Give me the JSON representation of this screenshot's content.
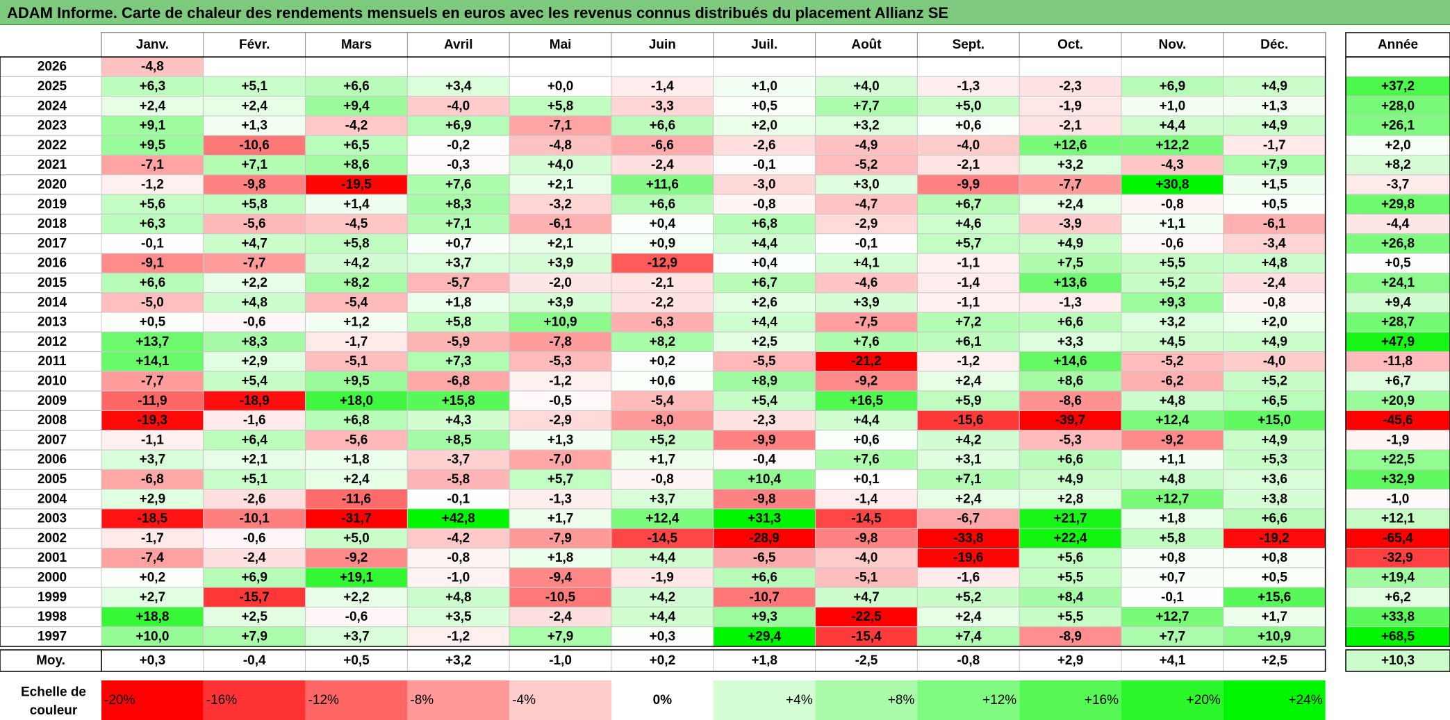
{
  "title": "ADAM Informe. Carte de chaleur des rendements mensuels en euros avec les revenus connus distribués du placement Allianz SE",
  "chart_data": {
    "type": "heatmap",
    "months": [
      "Janv.",
      "Févr.",
      "Mars",
      "Avril",
      "Mai",
      "Juin",
      "Juil.",
      "Août",
      "Sept.",
      "Oct.",
      "Nov.",
      "Déc."
    ],
    "year_header": "Année",
    "rows": [
      {
        "year": "2026",
        "values": [
          "-4,8",
          "",
          "",
          "",
          "",
          "",
          "",
          "",
          "",
          "",
          "",
          ""
        ],
        "annual": ""
      },
      {
        "year": "2025",
        "values": [
          "+6,3",
          "+5,1",
          "+6,6",
          "+3,4",
          "+0,0",
          "-1,4",
          "+1,0",
          "+4,0",
          "-1,3",
          "-2,3",
          "+6,9",
          "+4,9"
        ],
        "annual": "+37,2"
      },
      {
        "year": "2024",
        "values": [
          "+2,4",
          "+2,4",
          "+9,4",
          "-4,0",
          "+5,8",
          "-3,3",
          "+0,5",
          "+7,7",
          "+5,0",
          "-1,9",
          "+1,0",
          "+1,3"
        ],
        "annual": "+28,0"
      },
      {
        "year": "2023",
        "values": [
          "+9,1",
          "+1,3",
          "-4,2",
          "+6,9",
          "-7,1",
          "+6,6",
          "+2,0",
          "+3,2",
          "+0,6",
          "-2,1",
          "+4,4",
          "+4,9"
        ],
        "annual": "+26,1"
      },
      {
        "year": "2022",
        "values": [
          "+9,5",
          "-10,6",
          "+6,5",
          "-0,2",
          "-4,8",
          "-6,6",
          "-2,6",
          "-4,9",
          "-4,0",
          "+12,6",
          "+12,2",
          "-1,7"
        ],
        "annual": "+2,0"
      },
      {
        "year": "2021",
        "values": [
          "-7,1",
          "+7,1",
          "+8,6",
          "-0,3",
          "+4,0",
          "-2,4",
          "-0,1",
          "-5,2",
          "-2,1",
          "+3,2",
          "-4,3",
          "+7,9"
        ],
        "annual": "+8,2"
      },
      {
        "year": "2020",
        "values": [
          "-1,2",
          "-9,8",
          "-19,5",
          "+7,6",
          "+2,1",
          "+11,6",
          "-3,0",
          "+3,0",
          "-9,9",
          "-7,7",
          "+30,8",
          "+1,5"
        ],
        "annual": "-3,7"
      },
      {
        "year": "2019",
        "values": [
          "+5,6",
          "+5,8",
          "+1,4",
          "+8,3",
          "-3,2",
          "+6,6",
          "-0,8",
          "-4,7",
          "+6,7",
          "+2,4",
          "-0,8",
          "+0,5"
        ],
        "annual": "+29,8"
      },
      {
        "year": "2018",
        "values": [
          "+6,3",
          "-5,6",
          "-4,5",
          "+7,1",
          "-6,1",
          "+0,4",
          "+6,8",
          "-2,9",
          "+4,6",
          "-3,9",
          "+1,1",
          "-6,1"
        ],
        "annual": "-4,4"
      },
      {
        "year": "2017",
        "values": [
          "-0,1",
          "+4,7",
          "+5,8",
          "+0,7",
          "+2,1",
          "+0,9",
          "+4,4",
          "-0,1",
          "+5,7",
          "+4,9",
          "-0,6",
          "-3,4"
        ],
        "annual": "+26,8"
      },
      {
        "year": "2016",
        "values": [
          "-9,1",
          "-7,7",
          "+4,2",
          "+3,7",
          "+3,9",
          "-12,9",
          "+0,4",
          "+4,1",
          "-1,1",
          "+7,5",
          "+5,5",
          "+4,8"
        ],
        "annual": "+0,5"
      },
      {
        "year": "2015",
        "values": [
          "+6,6",
          "+2,2",
          "+8,2",
          "-5,7",
          "-2,0",
          "-2,1",
          "+6,7",
          "-4,6",
          "-1,4",
          "+13,6",
          "+5,2",
          "-2,4"
        ],
        "annual": "+24,1"
      },
      {
        "year": "2014",
        "values": [
          "-5,0",
          "+4,8",
          "-5,4",
          "+1,8",
          "+3,9",
          "-2,2",
          "+2,6",
          "+3,9",
          "-1,1",
          "-1,3",
          "+9,3",
          "-0,8"
        ],
        "annual": "+9,4"
      },
      {
        "year": "2013",
        "values": [
          "+0,5",
          "-0,6",
          "+1,2",
          "+5,8",
          "+10,9",
          "-6,3",
          "+4,4",
          "-7,5",
          "+7,2",
          "+6,6",
          "+3,2",
          "+2,0"
        ],
        "annual": "+28,7"
      },
      {
        "year": "2012",
        "values": [
          "+13,7",
          "+8,3",
          "-1,7",
          "-5,9",
          "-7,8",
          "+8,2",
          "+2,5",
          "+7,6",
          "+6,1",
          "+3,3",
          "+4,5",
          "+4,9"
        ],
        "annual": "+47,9"
      },
      {
        "year": "2011",
        "values": [
          "+14,1",
          "+2,9",
          "-5,1",
          "+7,3",
          "-5,3",
          "+0,2",
          "-5,5",
          "-21,2",
          "-1,2",
          "+14,6",
          "-5,2",
          "-4,0"
        ],
        "annual": "-11,8"
      },
      {
        "year": "2010",
        "values": [
          "-7,7",
          "+5,4",
          "+9,5",
          "-6,8",
          "-1,2",
          "+0,6",
          "+8,9",
          "-9,2",
          "+2,4",
          "+8,6",
          "-6,2",
          "+5,2"
        ],
        "annual": "+6,7"
      },
      {
        "year": "2009",
        "values": [
          "-11,9",
          "-18,9",
          "+18,0",
          "+15,8",
          "-0,5",
          "-5,4",
          "+5,4",
          "+16,5",
          "+5,9",
          "-8,6",
          "+4,8",
          "+6,5"
        ],
        "annual": "+20,9"
      },
      {
        "year": "2008",
        "values": [
          "-19,3",
          "-1,6",
          "+6,8",
          "+4,3",
          "-2,9",
          "-8,0",
          "-2,3",
          "+4,4",
          "-15,6",
          "-39,7",
          "+12,4",
          "+15,0"
        ],
        "annual": "-45,6"
      },
      {
        "year": "2007",
        "values": [
          "-1,1",
          "+6,4",
          "-5,6",
          "+8,5",
          "+1,3",
          "+5,2",
          "-9,9",
          "+0,6",
          "+4,2",
          "-5,3",
          "-9,2",
          "+4,9"
        ],
        "annual": "-1,9"
      },
      {
        "year": "2006",
        "values": [
          "+3,7",
          "+2,1",
          "+1,8",
          "-3,7",
          "-7,0",
          "+1,7",
          "-0,4",
          "+7,6",
          "+3,1",
          "+6,6",
          "+1,1",
          "+5,3"
        ],
        "annual": "+22,5"
      },
      {
        "year": "2005",
        "values": [
          "-6,8",
          "+5,1",
          "+2,4",
          "-5,8",
          "+5,7",
          "-0,8",
          "+10,4",
          "+0,1",
          "+7,1",
          "+4,9",
          "+4,8",
          "+3,6"
        ],
        "annual": "+32,9"
      },
      {
        "year": "2004",
        "values": [
          "+2,9",
          "-2,6",
          "-11,6",
          "-0,1",
          "-1,3",
          "+3,7",
          "-9,8",
          "-1,4",
          "+2,4",
          "+2,8",
          "+12,7",
          "+3,8"
        ],
        "annual": "-1,0"
      },
      {
        "year": "2003",
        "values": [
          "-18,5",
          "-10,1",
          "-31,7",
          "+42,8",
          "+1,7",
          "+12,4",
          "+31,3",
          "-14,5",
          "-6,7",
          "+21,7",
          "+1,8",
          "+6,6"
        ],
        "annual": "+12,1"
      },
      {
        "year": "2002",
        "values": [
          "-1,7",
          "-0,6",
          "+5,0",
          "-4,2",
          "-7,9",
          "-14,5",
          "-28,9",
          "-9,8",
          "-33,8",
          "+22,4",
          "+5,8",
          "-19,2"
        ],
        "annual": "-65,4"
      },
      {
        "year": "2001",
        "values": [
          "-7,4",
          "-2,4",
          "-9,2",
          "-0,8",
          "+1,8",
          "+4,4",
          "-6,5",
          "-4,0",
          "-19,6",
          "+5,6",
          "+0,8",
          "+0,8"
        ],
        "annual": "-32,9"
      },
      {
        "year": "2000",
        "values": [
          "+0,2",
          "+6,9",
          "+19,1",
          "-1,0",
          "-9,4",
          "-1,9",
          "+6,6",
          "-5,1",
          "-1,6",
          "+5,5",
          "+0,7",
          "+0,5"
        ],
        "annual": "+19,4"
      },
      {
        "year": "1999",
        "values": [
          "+2,7",
          "-15,7",
          "+2,2",
          "+4,8",
          "-10,5",
          "+4,2",
          "-10,7",
          "+4,7",
          "+5,2",
          "+8,4",
          "-0,1",
          "+15,6"
        ],
        "annual": "+6,2"
      },
      {
        "year": "1998",
        "values": [
          "+18,8",
          "+2,5",
          "-0,6",
          "+3,5",
          "-2,4",
          "+4,4",
          "+9,3",
          "-22,5",
          "+2,4",
          "+5,5",
          "+12,7",
          "+1,7"
        ],
        "annual": "+33,8"
      },
      {
        "year": "1997",
        "values": [
          "+10,0",
          "+7,9",
          "+3,7",
          "-1,2",
          "+7,9",
          "+0,3",
          "+29,4",
          "-15,4",
          "+7,4",
          "-8,9",
          "+7,7",
          "+10,9"
        ],
        "annual": "+68,5"
      }
    ],
    "average": {
      "label": "Moy.",
      "values": [
        "+0,3",
        "-0,4",
        "+0,5",
        "+3,2",
        "-1,0",
        "+0,2",
        "+1,8",
        "-2,5",
        "-0,8",
        "+2,9",
        "+4,1",
        "+2,5"
      ],
      "annual": "+10,3"
    },
    "color_scale": {
      "label_line1": "Echelle de",
      "label_line2": "couleur",
      "steps": [
        "-20%",
        "-16%",
        "-12%",
        "-8%",
        "-4%",
        "0%",
        "+4%",
        "+8%",
        "+12%",
        "+16%",
        "+20%",
        "+24%"
      ],
      "step_values": [
        -20,
        -16,
        -12,
        -8,
        -4,
        0,
        4,
        8,
        12,
        16,
        20,
        24
      ]
    },
    "colors": {
      "negative_max": "#ff0000",
      "neutral": "#ffffff",
      "positive_max": "#00ee00",
      "title_bg": "#7dc97d"
    }
  }
}
